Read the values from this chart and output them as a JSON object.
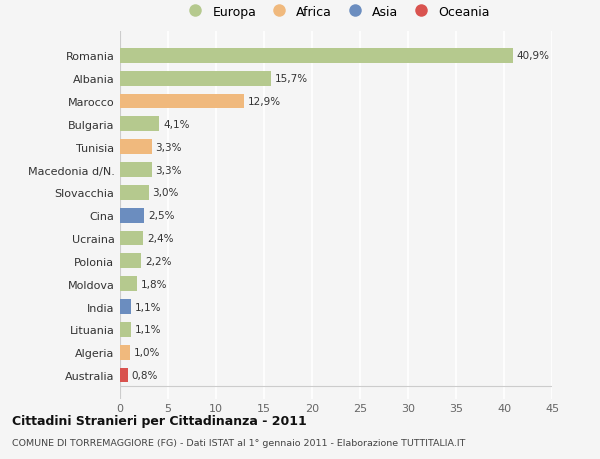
{
  "countries": [
    "Romania",
    "Albania",
    "Marocco",
    "Bulgaria",
    "Tunisia",
    "Macedonia d/N.",
    "Slovacchia",
    "Cina",
    "Ucraina",
    "Polonia",
    "Moldova",
    "India",
    "Lituania",
    "Algeria",
    "Australia"
  ],
  "values": [
    40.9,
    15.7,
    12.9,
    4.1,
    3.3,
    3.3,
    3.0,
    2.5,
    2.4,
    2.2,
    1.8,
    1.1,
    1.1,
    1.0,
    0.8
  ],
  "labels": [
    "40,9%",
    "15,7%",
    "12,9%",
    "4,1%",
    "3,3%",
    "3,3%",
    "3,0%",
    "2,5%",
    "2,4%",
    "2,2%",
    "1,8%",
    "1,1%",
    "1,1%",
    "1,0%",
    "0,8%"
  ],
  "continents": [
    "Europa",
    "Europa",
    "Africa",
    "Europa",
    "Africa",
    "Europa",
    "Europa",
    "Asia",
    "Europa",
    "Europa",
    "Europa",
    "Asia",
    "Europa",
    "Africa",
    "Oceania"
  ],
  "colors": {
    "Europa": "#b5c98e",
    "Africa": "#f0b97d",
    "Asia": "#6b8dbf",
    "Oceania": "#d9534f"
  },
  "xlim": [
    0,
    45
  ],
  "xticks": [
    0,
    5,
    10,
    15,
    20,
    25,
    30,
    35,
    40,
    45
  ],
  "title": "Cittadini Stranieri per Cittadinanza - 2011",
  "subtitle": "COMUNE DI TORREMAGGIORE (FG) - Dati ISTAT al 1° gennaio 2011 - Elaborazione TUTTITALIA.IT",
  "background_color": "#f5f5f5",
  "grid_color": "#ffffff",
  "bar_height": 0.65,
  "legend_entries": [
    "Europa",
    "Africa",
    "Asia",
    "Oceania"
  ]
}
